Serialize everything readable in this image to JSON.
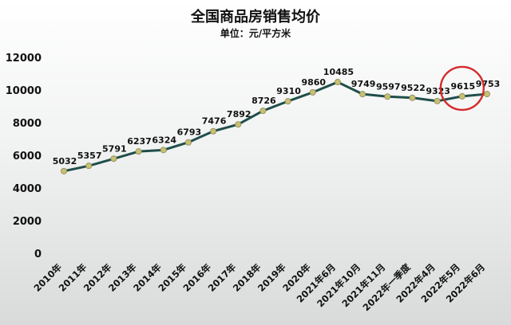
{
  "chart_data": {
    "type": "line",
    "title": "全国商品房销售均价",
    "subtitle": "单位：元/平方米",
    "categories": [
      "2010年",
      "2011年",
      "2012年",
      "2013年",
      "2014年",
      "2015年",
      "2016年",
      "2017年",
      "2018年",
      "2019年",
      "2020年",
      "2021年6月",
      "2021年10月",
      "2021年11月",
      "2022年一季度",
      "2022年4月",
      "2022年5月",
      "2022年6月"
    ],
    "series": [
      {
        "values": [
          5032,
          5357,
          5791,
          6237,
          6324,
          6793,
          7476,
          7892,
          8726,
          9310,
          9860,
          10485,
          9749,
          9597,
          9522,
          9323,
          9615,
          9753
        ]
      }
    ],
    "data_labels": [
      "5032",
      "5357",
      "5791",
      "6237",
      "6324",
      "6793",
      "7476",
      "7892",
      "8726",
      "9310",
      "9860",
      "10485",
      "9749",
      "9597",
      "9522",
      "9323",
      "9615",
      "9753"
    ],
    "yticks": [
      "0",
      "2000",
      "4000",
      "6000",
      "8000",
      "10000",
      "12000"
    ],
    "ylim": [
      0,
      12000
    ],
    "grid": false,
    "legend": "none",
    "colors": {
      "line": "#1f4e4a",
      "marker": "#c8bf72",
      "marker_edge": "#8a8a5a",
      "highlight_ring": "#d42a2a"
    },
    "highlight": {
      "point_index": 16,
      "shape": "circle"
    }
  }
}
